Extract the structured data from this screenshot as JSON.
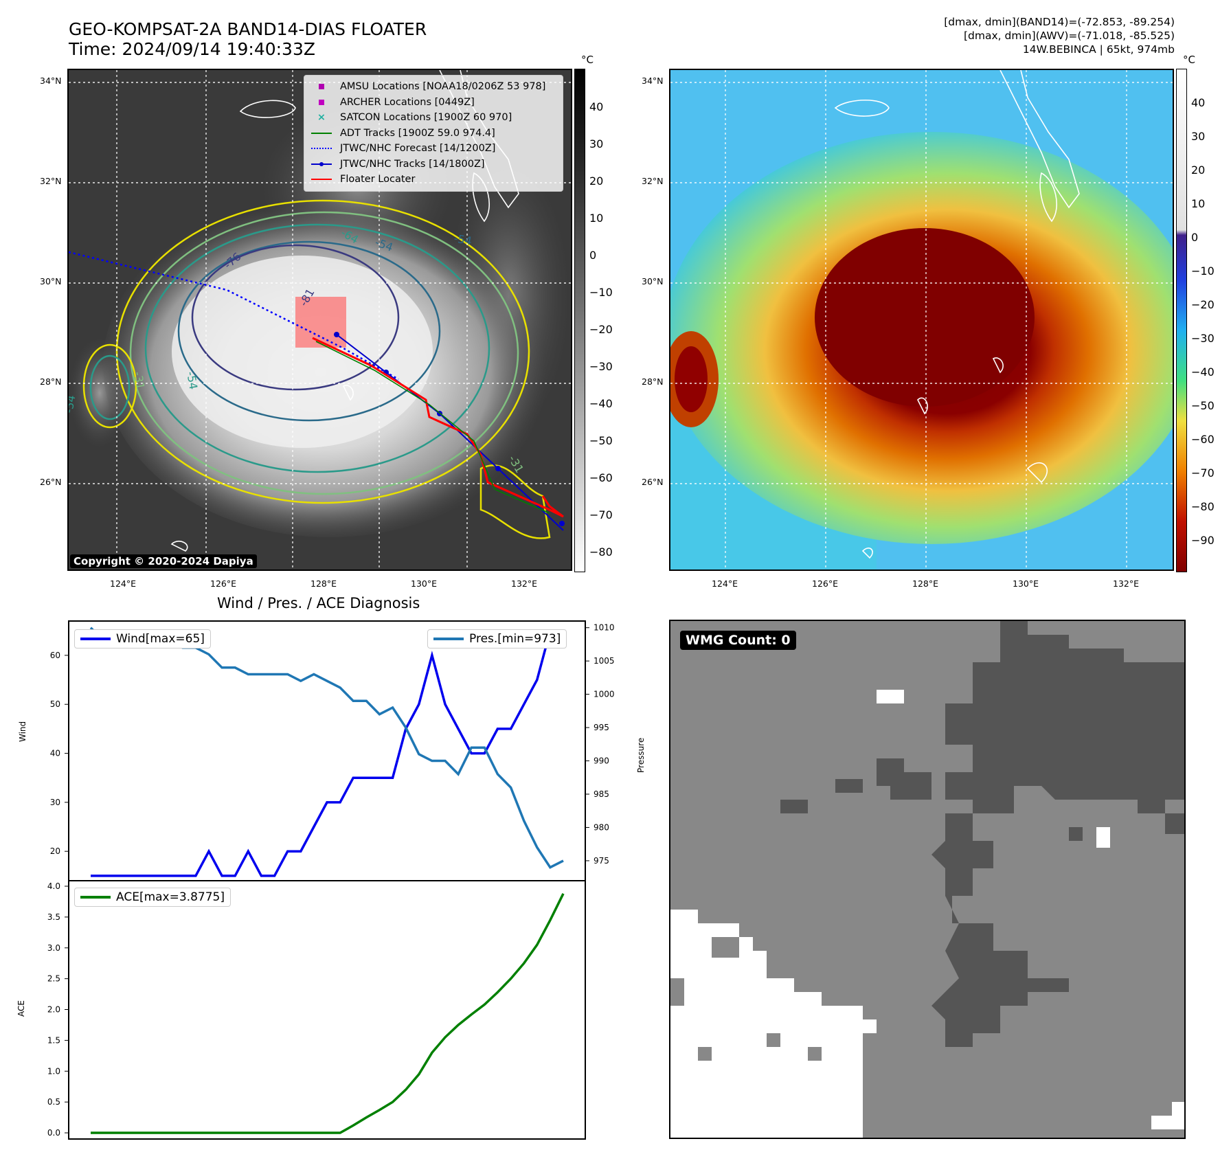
{
  "header": {
    "title_line1": "GEO-KOMPSAT-2A BAND14-DIAS FLOATER",
    "title_line2": "Time: 2024/09/14 19:40:33Z",
    "stats_line1": "[dmax, dmin](BAND14)=(-72.853, -89.254)",
    "stats_line2": "[dmax, dmin](AWV)=(-71.018, -85.525)",
    "stats_line3": "14W.BEBINCA | 65kt, 974mb"
  },
  "map": {
    "lat_labels": [
      "34°N",
      "32°N",
      "30°N",
      "28°N",
      "26°N"
    ],
    "lon_labels": [
      "124°E",
      "126°E",
      "128°E",
      "130°E",
      "132°E"
    ],
    "contour_labels": [
      "-76",
      "-64",
      "-54",
      "-54",
      "-81",
      "-31",
      "-54",
      "-54",
      "-31"
    ],
    "copyright": "Copyright © 2020-2024 Dapiya",
    "legend": [
      {
        "label": "AMSU Locations [NOAA18/0206Z 53 978]",
        "color": "#b000b0",
        "marker": "square"
      },
      {
        "label": "ARCHER Locations [0449Z]",
        "color": "#c000c0",
        "marker": "square"
      },
      {
        "label": "SATCON Locations [1900Z 60 970]",
        "color": "#20b0a0",
        "marker": "x"
      },
      {
        "label": "ADT Tracks [1900Z 59.0 974.4]",
        "color": "#008000",
        "marker": "line"
      },
      {
        "label": "JTWC/NHC Forecast [14/1200Z]",
        "color": "#0000ff",
        "marker": "dotted"
      },
      {
        "label": "JTWC/NHC Tracks [14/1800Z]",
        "color": "#0000cc",
        "marker": "line-dot"
      },
      {
        "label": "Floater Locater",
        "color": "#ff0000",
        "marker": "line"
      }
    ]
  },
  "colorbar_left": {
    "unit": "°C",
    "ticks": [
      "40",
      "30",
      "20",
      "10",
      "0",
      "−10",
      "−20",
      "−30",
      "−40",
      "−50",
      "−60",
      "−70",
      "−80"
    ]
  },
  "colorbar_right": {
    "unit": "°C",
    "ticks": [
      "40",
      "30",
      "20",
      "10",
      "0",
      "−10",
      "−20",
      "−30",
      "−40",
      "−50",
      "−60",
      "−70",
      "−80",
      "−90"
    ]
  },
  "diagnosis": {
    "title": "Wind / Pres. / ACE Diagnosis",
    "wind_legend": "Wind[max=65]",
    "pres_legend": "Pres.[min=973]",
    "ace_legend": "ACE[max=3.8775]",
    "wind_axis_label": "Wind",
    "pres_axis_label": "Pressure",
    "ace_axis_label": "ACE"
  },
  "wmg": {
    "label": "WMG Count: 0"
  },
  "colors": {
    "wind": "#0000ee",
    "pressure": "#1f77b4",
    "ace": "#008000",
    "wmg_dark": "#555555",
    "wmg_mid": "#888888",
    "wmg_light": "#ffffff"
  },
  "chart_data": [
    {
      "type": "line",
      "title": "Wind / Pres. / ACE Diagnosis",
      "ylabel": "Wind",
      "ylim": [
        14,
        67
      ],
      "series": [
        {
          "name": "Wind[max=65]",
          "values": [
            15,
            15,
            15,
            15,
            15,
            15,
            15,
            15,
            15,
            20,
            15,
            15,
            20,
            15,
            15,
            20,
            20,
            25,
            30,
            30,
            35,
            35,
            35,
            35,
            45,
            50,
            60,
            50,
            45,
            40,
            40,
            45,
            45,
            50,
            55,
            65,
            65
          ]
        }
      ]
    },
    {
      "type": "line",
      "ylabel": "Pressure",
      "ylim": [
        972,
        1011
      ],
      "series": [
        {
          "name": "Pres.[min=973]",
          "values": [
            1010,
            1008,
            1008,
            1008,
            1008,
            1009,
            1008,
            1007,
            1007,
            1006,
            1004,
            1004,
            1003,
            1003,
            1003,
            1003,
            1002,
            1003,
            1002,
            1001,
            999,
            999,
            997,
            998,
            995,
            991,
            990,
            990,
            988,
            992,
            992,
            988,
            986,
            981,
            977,
            974,
            975
          ]
        }
      ]
    },
    {
      "type": "line",
      "ylabel": "ACE",
      "ylim": [
        -0.1,
        4.0
      ],
      "yticks": [
        "0.0",
        "0.5",
        "1.0",
        "1.5",
        "2.0",
        "2.5",
        "3.0",
        "3.5",
        "4.0"
      ],
      "series": [
        {
          "name": "ACE[max=3.8775]",
          "values": [
            0,
            0,
            0,
            0,
            0,
            0,
            0,
            0,
            0,
            0,
            0,
            0,
            0,
            0,
            0,
            0,
            0,
            0,
            0,
            0,
            0.12,
            0.25,
            0.37,
            0.5,
            0.7,
            0.95,
            1.3,
            1.55,
            1.75,
            1.92,
            2.08,
            2.28,
            2.5,
            2.75,
            3.05,
            3.45,
            3.88
          ]
        }
      ]
    }
  ]
}
